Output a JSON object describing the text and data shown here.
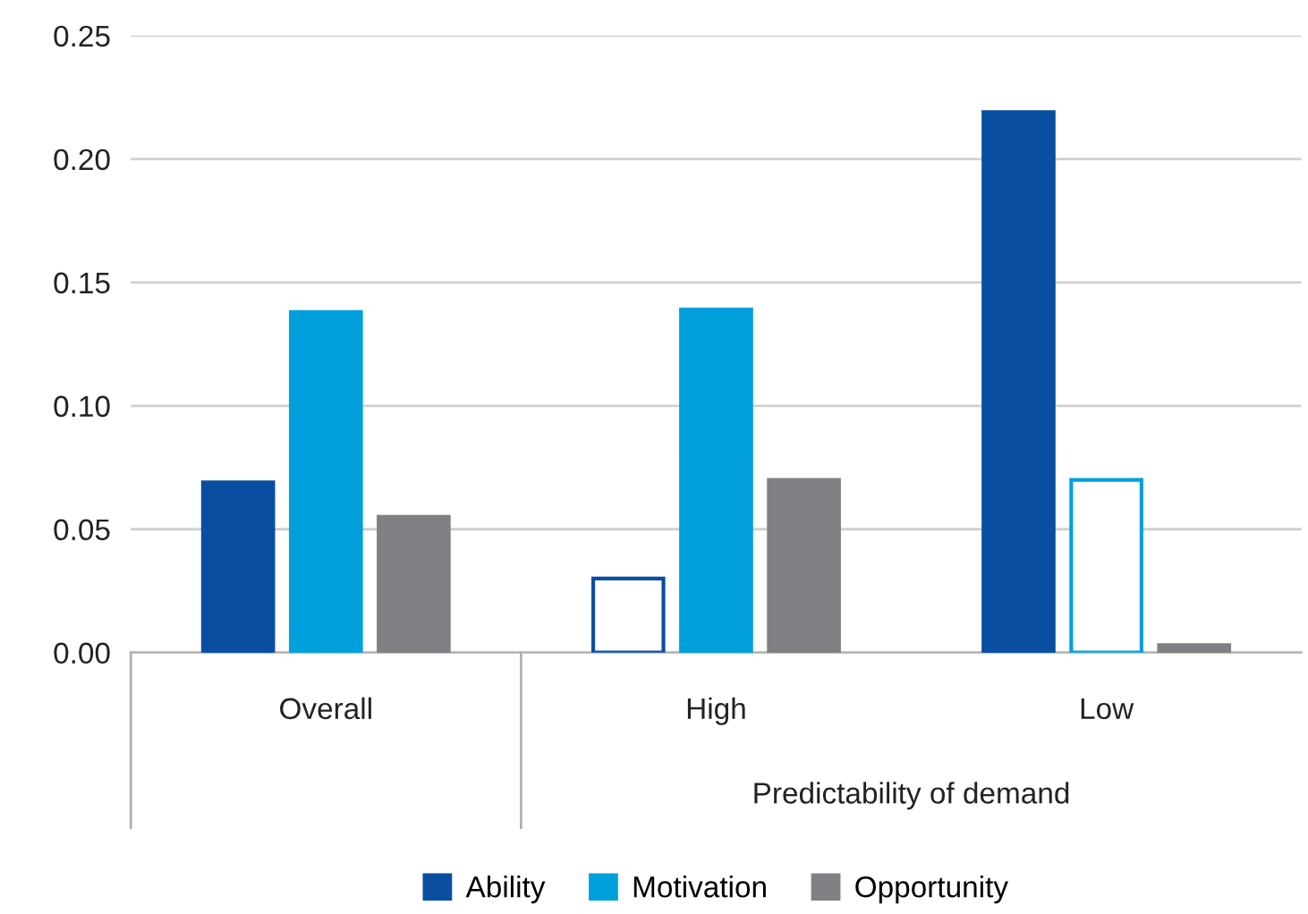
{
  "chart_data": {
    "type": "bar",
    "categories": [
      "Overall",
      "High",
      "Low"
    ],
    "xlabel": "Predictability of demand",
    "series": [
      {
        "name": "Ability",
        "color": "#0a4ea2",
        "values": [
          0.069,
          0.03,
          0.219
        ],
        "colors": [
          "#0a4ea2",
          "#ffffff",
          "#0a4ea2"
        ]
      },
      {
        "name": "Motivation",
        "color": "#00a0dc",
        "values": [
          0.138,
          0.139,
          0.07
        ],
        "colors": [
          "#00a0dc",
          "#00a0dc",
          "#ffffff"
        ]
      },
      {
        "name": "Opportunity",
        "color": "#808184",
        "values": [
          0.055,
          0.07,
          0.003
        ]
      }
    ],
    "ylim": [
      0,
      0.25
    ],
    "yticks": [
      {
        "value": 0,
        "label": "0.00"
      },
      {
        "value": 0.05,
        "label": "0.05"
      },
      {
        "value": 0.1,
        "label": "0.10"
      },
      {
        "value": 0.15,
        "label": "0.15"
      },
      {
        "value": 0.2,
        "label": "0.20"
      },
      {
        "value": 0.25,
        "label": "0.25"
      }
    ],
    "grid": "y",
    "legend": "bottom"
  }
}
